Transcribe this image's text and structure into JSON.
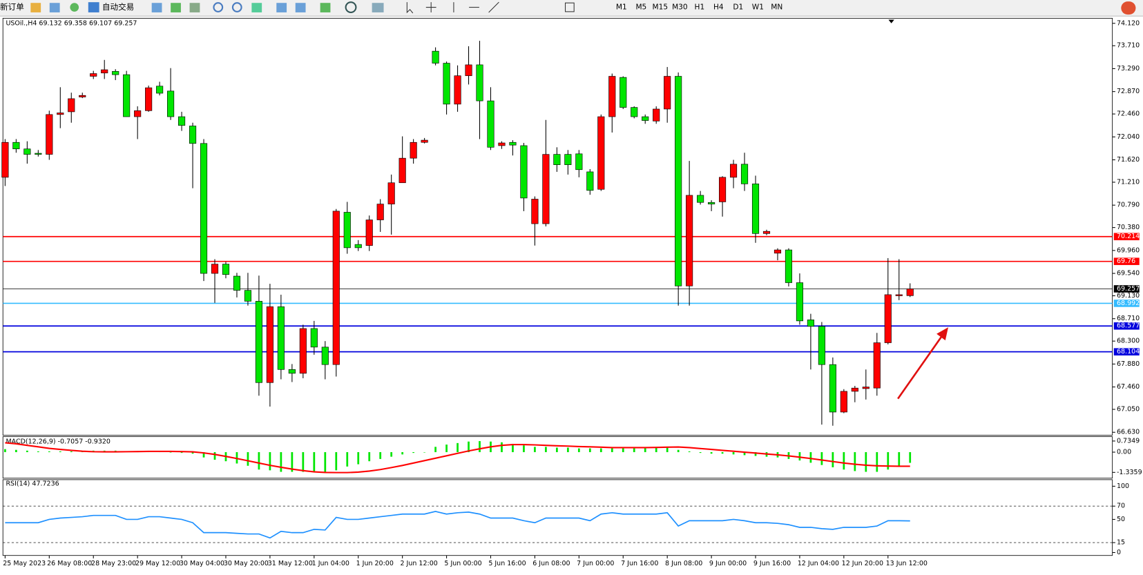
{
  "toolbar": {
    "new_order": "新订单",
    "auto_trade": "自动交易",
    "timeframes": [
      "M1",
      "M5",
      "M15",
      "M30",
      "H1",
      "H4",
      "D1",
      "W1",
      "MN"
    ]
  },
  "chart_data": [
    {
      "type": "candlestick",
      "title": "USOil.,H4 69.132 69.358 69.107 69.257",
      "categories": [
        "25 May 2023",
        null,
        null,
        null,
        "26 May 08:00",
        null,
        null,
        null,
        "28 May 23:00",
        null,
        null,
        null,
        "29 May 12:00",
        null,
        null,
        null,
        "30 May 04:00",
        null,
        null,
        null,
        "30 May 20:00",
        null,
        null,
        null,
        "31 May 12:00",
        null,
        null,
        null,
        "1 Jun 04:00",
        null,
        null,
        null,
        "1 Jun 20:00",
        null,
        null,
        null,
        "2 Jun 12:00",
        null,
        null,
        null,
        "5 Jun 00:00",
        null,
        null,
        null,
        "5 Jun 16:00",
        null,
        null,
        null,
        "6 Jun 08:00",
        null,
        null,
        null,
        "7 Jun 00:00",
        null,
        null,
        null,
        "7 Jun 16:00",
        null,
        null,
        null,
        "8 Jun 08:00",
        null,
        null,
        null,
        "9 Jun 00:00",
        null,
        null,
        null,
        "9 Jun 16:00",
        null,
        null,
        null,
        "12 Jun 04:00",
        null,
        null,
        null,
        "12 Jun 20:00",
        null,
        null,
        null,
        "13 Jun 12:00",
        null,
        null
      ],
      "open": [
        71.3,
        71.94,
        71.82,
        71.74,
        71.72,
        72.45,
        72.5,
        72.77,
        73.15,
        73.21,
        73.24,
        73.18,
        72.41,
        72.52,
        72.97,
        72.88,
        72.41,
        72.24,
        71.92,
        69.54,
        69.71,
        69.49,
        69.23,
        69.03,
        67.54,
        68.93,
        67.78,
        67.71,
        68.53,
        68.19,
        67.87,
        70.66,
        70.07,
        70.05,
        70.52,
        70.81,
        71.2,
        71.65,
        71.94,
        73.61,
        73.39,
        72.64,
        73.16,
        73.36,
        72.7,
        71.88,
        71.94,
        71.88,
        70.45,
        70.45,
        71.72,
        71.72,
        71.73,
        71.4,
        71.08,
        72.41,
        73.13,
        72.58,
        72.41,
        72.33,
        72.55,
        73.15,
        69.31,
        70.97,
        70.84,
        70.85,
        71.3,
        71.54,
        71.18,
        70.27,
        69.91,
        69.97,
        69.37,
        68.69,
        68.57,
        67.87,
        67.0,
        67.38,
        67.43,
        67.44,
        68.27,
        69.13,
        69.132
      ],
      "high": [
        72.0,
        72.0,
        71.96,
        71.8,
        72.52,
        72.95,
        72.85,
        72.85,
        73.25,
        73.45,
        73.28,
        73.25,
        72.6,
        72.98,
        73.05,
        73.3,
        72.5,
        72.3,
        72.0,
        69.8,
        69.75,
        69.55,
        69.55,
        69.5,
        69.35,
        69.15,
        67.88,
        68.6,
        68.67,
        68.3,
        70.72,
        70.85,
        70.15,
        70.6,
        70.9,
        71.35,
        72.05,
        72.0,
        72.02,
        73.68,
        73.42,
        73.35,
        73.7,
        73.8,
        72.95,
        71.96,
        71.98,
        71.93,
        70.95,
        72.35,
        71.85,
        71.8,
        71.8,
        71.45,
        72.45,
        73.2,
        73.15,
        72.6,
        72.45,
        72.6,
        73.32,
        73.22,
        71.6,
        71.05,
        70.88,
        71.32,
        71.62,
        71.75,
        71.33,
        70.34,
        70.0,
        70.0,
        69.54,
        68.8,
        68.65,
        68.0,
        67.42,
        67.48,
        67.78,
        68.45,
        69.82,
        69.8,
        69.358
      ],
      "low": [
        71.14,
        71.75,
        71.55,
        71.68,
        71.62,
        72.2,
        72.3,
        72.75,
        73.1,
        73.1,
        73.08,
        72.41,
        72.0,
        72.5,
        72.8,
        72.35,
        72.15,
        71.1,
        69.4,
        69.0,
        69.45,
        69.1,
        68.95,
        67.3,
        67.1,
        67.6,
        67.55,
        67.62,
        68.05,
        67.6,
        67.65,
        69.9,
        69.95,
        69.95,
        70.3,
        70.25,
        71.2,
        71.55,
        71.92,
        73.35,
        72.45,
        72.5,
        73.0,
        72.0,
        71.8,
        71.82,
        71.7,
        70.68,
        70.05,
        70.4,
        71.4,
        71.35,
        71.3,
        70.98,
        71.05,
        72.12,
        72.55,
        72.38,
        72.28,
        72.28,
        72.3,
        68.95,
        68.95,
        70.8,
        70.68,
        70.58,
        71.1,
        71.05,
        70.1,
        70.24,
        69.78,
        69.3,
        68.6,
        67.78,
        66.77,
        66.75,
        66.98,
        67.18,
        67.23,
        67.3,
        68.24,
        69.05,
        69.107
      ],
      "close": [
        71.94,
        71.82,
        71.72,
        71.72,
        72.45,
        72.48,
        72.74,
        72.8,
        73.2,
        73.27,
        73.18,
        72.41,
        72.52,
        72.94,
        72.84,
        72.41,
        72.25,
        71.92,
        69.54,
        69.71,
        69.52,
        69.23,
        69.03,
        67.54,
        68.93,
        67.78,
        67.71,
        68.53,
        68.19,
        67.87,
        70.68,
        70.01,
        70.01,
        70.52,
        70.81,
        71.2,
        71.65,
        71.94,
        71.98,
        73.39,
        72.64,
        73.16,
        73.36,
        72.7,
        71.85,
        71.93,
        71.89,
        70.92,
        70.9,
        71.72,
        71.53,
        71.53,
        71.44,
        71.06,
        72.41,
        73.15,
        72.58,
        72.41,
        72.34,
        72.55,
        73.15,
        69.31,
        70.97,
        70.84,
        70.81,
        71.3,
        71.54,
        71.18,
        70.27,
        70.31,
        69.97,
        69.37,
        68.67,
        68.57,
        67.87,
        67.0,
        67.38,
        67.44,
        67.46,
        68.27,
        69.15,
        69.15,
        69.257
      ],
      "up_color": "#ff0000",
      "down_color": "#00e600",
      "ylim": [
        66.63,
        74.12
      ],
      "yticks": [
        {
          "value": 74.12,
          "label": "74.120"
        },
        {
          "value": 73.71,
          "label": "73.710"
        },
        {
          "value": 73.29,
          "label": "73.290"
        },
        {
          "value": 72.87,
          "label": "72.870"
        },
        {
          "value": 72.46,
          "label": "72.460"
        },
        {
          "value": 72.04,
          "label": "72.040"
        },
        {
          "value": 71.62,
          "label": "71.620"
        },
        {
          "value": 71.21,
          "label": "71.210"
        },
        {
          "value": 70.79,
          "label": "70.790"
        },
        {
          "value": 70.38,
          "label": "70.380"
        },
        {
          "value": 69.96,
          "label": "69.960"
        },
        {
          "value": 69.54,
          "label": "69.540"
        },
        {
          "value": 69.13,
          "label": "69.130"
        },
        {
          "value": 68.71,
          "label": "68.710"
        },
        {
          "value": 68.3,
          "label": "68.300"
        },
        {
          "value": 67.88,
          "label": "67.880"
        },
        {
          "value": 67.46,
          "label": "67.460"
        },
        {
          "value": 67.05,
          "label": "67.050"
        },
        {
          "value": 66.63,
          "label": "66.630"
        }
      ],
      "levels": [
        {
          "value": 70.214,
          "color": "#ff0000"
        },
        {
          "value": 69.76,
          "color": "#ff0000"
        },
        {
          "value": 68.992,
          "color": "#33bbff"
        },
        {
          "value": 68.577,
          "color": "#0000dd"
        },
        {
          "value": 68.104,
          "color": "#0000dd"
        }
      ],
      "current_price": 69.257
    },
    {
      "type": "macd",
      "title": "MACD(12,26,9) -0.7057 -0.9320",
      "histogram": [
        0.2,
        0.15,
        0.1,
        0.05,
        0.05,
        0.05,
        0.05,
        0.05,
        0.1,
        0.1,
        0.1,
        0.05,
        0.03,
        0.03,
        0.03,
        0,
        -0.05,
        -0.1,
        -0.35,
        -0.5,
        -0.6,
        -0.75,
        -0.9,
        -1.15,
        -1.2,
        -1.3,
        -1.3,
        -1.3,
        -1.3,
        -1.3,
        -1.2,
        -0.95,
        -0.8,
        -0.6,
        -0.45,
        -0.3,
        -0.15,
        -0.05,
        0,
        0.35,
        0.5,
        0.6,
        0.7,
        0.73,
        0.7,
        0.65,
        0.55,
        0.45,
        0.35,
        0.35,
        0.3,
        0.3,
        0.25,
        0.25,
        0.25,
        0.25,
        0.25,
        0.25,
        0.25,
        0.3,
        0.35,
        0.15,
        0.05,
        -0.05,
        -0.1,
        -0.1,
        -0.15,
        -0.2,
        -0.25,
        -0.3,
        -0.35,
        -0.45,
        -0.55,
        -0.7,
        -0.85,
        -1.0,
        -1.15,
        -1.25,
        -1.3,
        -1.3,
        -1.15,
        -0.95,
        -0.7057
      ],
      "signal": [
        0.62,
        0.55,
        0.45,
        0.35,
        0.25,
        0.18,
        0.12,
        0.06,
        0.03,
        0.02,
        0.02,
        0.03,
        0.04,
        0.05,
        0.05,
        0.05,
        0.04,
        0.02,
        -0.05,
        -0.15,
        -0.28,
        -0.42,
        -0.57,
        -0.72,
        -0.87,
        -1.0,
        -1.12,
        -1.22,
        -1.3,
        -1.34,
        -1.35,
        -1.35,
        -1.32,
        -1.25,
        -1.15,
        -1.02,
        -0.88,
        -0.72,
        -0.56,
        -0.4,
        -0.24,
        -0.08,
        0.08,
        0.22,
        0.35,
        0.45,
        0.5,
        0.5,
        0.48,
        0.45,
        0.42,
        0.4,
        0.37,
        0.35,
        0.33,
        0.3,
        0.3,
        0.3,
        0.3,
        0.31,
        0.33,
        0.34,
        0.3,
        0.24,
        0.18,
        0.12,
        0.06,
        0.0,
        -0.06,
        -0.12,
        -0.18,
        -0.25,
        -0.33,
        -0.42,
        -0.52,
        -0.62,
        -0.72,
        -0.8,
        -0.86,
        -0.9,
        -0.92,
        -0.93,
        -0.932
      ],
      "hist_color": "#00e600",
      "signal_color": "#ff0000",
      "ylim": [
        -1.3359,
        0.7349
      ],
      "yticks": [
        0.7349,
        {
          "value": 0,
          "label": "0.00"
        },
        -1.3359
      ]
    },
    {
      "type": "rsi",
      "title": "RSI(14) 47.7236",
      "values": [
        45,
        45,
        45,
        45,
        50,
        52,
        53,
        54,
        56,
        56,
        56,
        50,
        50,
        54,
        54,
        52,
        50,
        45,
        30,
        30,
        30,
        29,
        28,
        28,
        22,
        32,
        30,
        30,
        35,
        34,
        53,
        50,
        50,
        52,
        54,
        56,
        58,
        58,
        58,
        62,
        58,
        60,
        61,
        58,
        52,
        52,
        52,
        48,
        45,
        52,
        52,
        52,
        52,
        48,
        58,
        60,
        58,
        58,
        58,
        58,
        60,
        40,
        48,
        48,
        48,
        48,
        50,
        48,
        45,
        45,
        44,
        42,
        38,
        38,
        36,
        35,
        38,
        38,
        38,
        40,
        48,
        48,
        47.7236
      ],
      "color": "#1e90ff",
      "ylim": [
        0,
        100
      ],
      "yticks": [
        100,
        70,
        50,
        15,
        0
      ],
      "levels": [
        70,
        15
      ]
    }
  ]
}
